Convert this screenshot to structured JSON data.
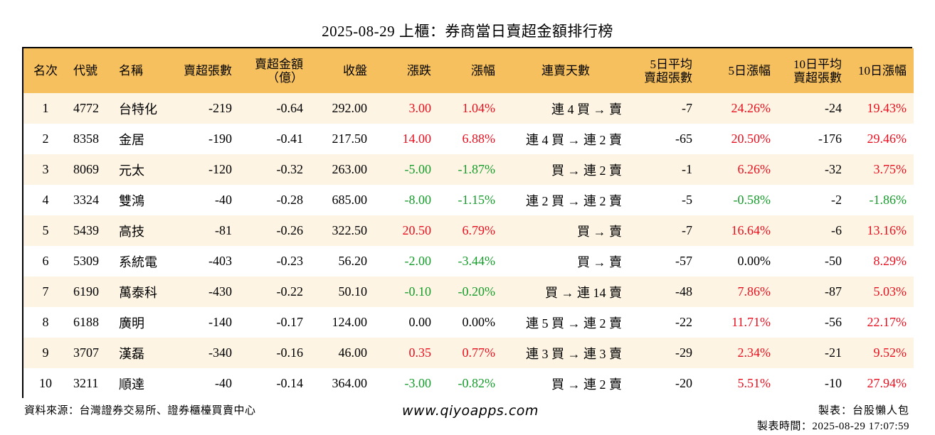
{
  "title": "2025-08-29 上櫃：券商當日賣超金額排行榜",
  "headers": [
    "名次",
    "代號",
    "名稱",
    "賣超張數",
    "賣超金額\n（億）",
    "收盤",
    "漲跌",
    "漲幅",
    "連賣天數",
    "5日平均\n賣超張數",
    "5日漲幅",
    "10日平均\n賣超張數",
    "10日漲幅"
  ],
  "rows": [
    {
      "rank": "1",
      "code": "4772",
      "name": "台特化",
      "shares": "-219",
      "amount": "-0.64",
      "close": "292.00",
      "change": "3.00",
      "change_dir": "up",
      "pct": "1.04%",
      "pct_dir": "up",
      "streak": "連 4 買 → 賣",
      "avg5": "-7",
      "pct5": "24.26%",
      "pct5_dir": "up",
      "avg10": "-24",
      "pct10": "19.43%",
      "pct10_dir": "up"
    },
    {
      "rank": "2",
      "code": "8358",
      "name": "金居",
      "shares": "-190",
      "amount": "-0.41",
      "close": "217.50",
      "change": "14.00",
      "change_dir": "up",
      "pct": "6.88%",
      "pct_dir": "up",
      "streak": "連 4 買 → 連 2 賣",
      "avg5": "-65",
      "pct5": "20.50%",
      "pct5_dir": "up",
      "avg10": "-176",
      "pct10": "29.46%",
      "pct10_dir": "up"
    },
    {
      "rank": "3",
      "code": "8069",
      "name": "元太",
      "shares": "-120",
      "amount": "-0.32",
      "close": "263.00",
      "change": "-5.00",
      "change_dir": "down",
      "pct": "-1.87%",
      "pct_dir": "down",
      "streak": "買 → 連 2 賣",
      "avg5": "-1",
      "pct5": "6.26%",
      "pct5_dir": "up",
      "avg10": "-32",
      "pct10": "3.75%",
      "pct10_dir": "up"
    },
    {
      "rank": "4",
      "code": "3324",
      "name": "雙鴻",
      "shares": "-40",
      "amount": "-0.28",
      "close": "685.00",
      "change": "-8.00",
      "change_dir": "down",
      "pct": "-1.15%",
      "pct_dir": "down",
      "streak": "連 2 買 → 連 2 賣",
      "avg5": "-5",
      "pct5": "-0.58%",
      "pct5_dir": "down",
      "avg10": "-2",
      "pct10": "-1.86%",
      "pct10_dir": "down"
    },
    {
      "rank": "5",
      "code": "5439",
      "name": "高技",
      "shares": "-81",
      "amount": "-0.26",
      "close": "322.50",
      "change": "20.50",
      "change_dir": "up",
      "pct": "6.79%",
      "pct_dir": "up",
      "streak": "買 → 賣",
      "avg5": "-7",
      "pct5": "16.64%",
      "pct5_dir": "up",
      "avg10": "-6",
      "pct10": "13.16%",
      "pct10_dir": "up"
    },
    {
      "rank": "6",
      "code": "5309",
      "name": "系統電",
      "shares": "-403",
      "amount": "-0.23",
      "close": "56.20",
      "change": "-2.00",
      "change_dir": "down",
      "pct": "-3.44%",
      "pct_dir": "down",
      "streak": "買 → 賣",
      "avg5": "-57",
      "pct5": "0.00%",
      "pct5_dir": "flat",
      "avg10": "-50",
      "pct10": "8.29%",
      "pct10_dir": "up"
    },
    {
      "rank": "7",
      "code": "6190",
      "name": "萬泰科",
      "shares": "-430",
      "amount": "-0.22",
      "close": "50.10",
      "change": "-0.10",
      "change_dir": "down",
      "pct": "-0.20%",
      "pct_dir": "down",
      "streak": "買 → 連 14 賣",
      "avg5": "-48",
      "pct5": "7.86%",
      "pct5_dir": "up",
      "avg10": "-87",
      "pct10": "5.03%",
      "pct10_dir": "up"
    },
    {
      "rank": "8",
      "code": "6188",
      "name": "廣明",
      "shares": "-140",
      "amount": "-0.17",
      "close": "124.00",
      "change": "0.00",
      "change_dir": "flat",
      "pct": "0.00%",
      "pct_dir": "flat",
      "streak": "連 5 買 → 連 2 賣",
      "avg5": "-22",
      "pct5": "11.71%",
      "pct5_dir": "up",
      "avg10": "-56",
      "pct10": "22.17%",
      "pct10_dir": "up"
    },
    {
      "rank": "9",
      "code": "3707",
      "name": "漢磊",
      "shares": "-340",
      "amount": "-0.16",
      "close": "46.00",
      "change": "0.35",
      "change_dir": "up",
      "pct": "0.77%",
      "pct_dir": "up",
      "streak": "連 3 買 → 連 3 賣",
      "avg5": "-29",
      "pct5": "2.34%",
      "pct5_dir": "up",
      "avg10": "-21",
      "pct10": "9.52%",
      "pct10_dir": "up"
    },
    {
      "rank": "10",
      "code": "3211",
      "name": "順達",
      "shares": "-40",
      "amount": "-0.14",
      "close": "364.00",
      "change": "-3.00",
      "change_dir": "down",
      "pct": "-0.82%",
      "pct_dir": "down",
      "streak": "買 → 連 2 賣",
      "avg5": "-20",
      "pct5": "5.51%",
      "pct5_dir": "up",
      "avg10": "-10",
      "pct10": "27.94%",
      "pct10_dir": "up"
    }
  ],
  "footer": {
    "source": "資料來源：台灣證券交易所、證券櫃檯買賣中心",
    "website": "www.qiyoapps.com",
    "maker": "製表：台股懶人包",
    "made_time": "製表時間：2025-08-29 17:07:59"
  },
  "colors": {
    "header_bg": "#f6c05e",
    "row_alt_bg": "#fdf4e3",
    "up": "#e8101f",
    "down": "#159c2a"
  }
}
